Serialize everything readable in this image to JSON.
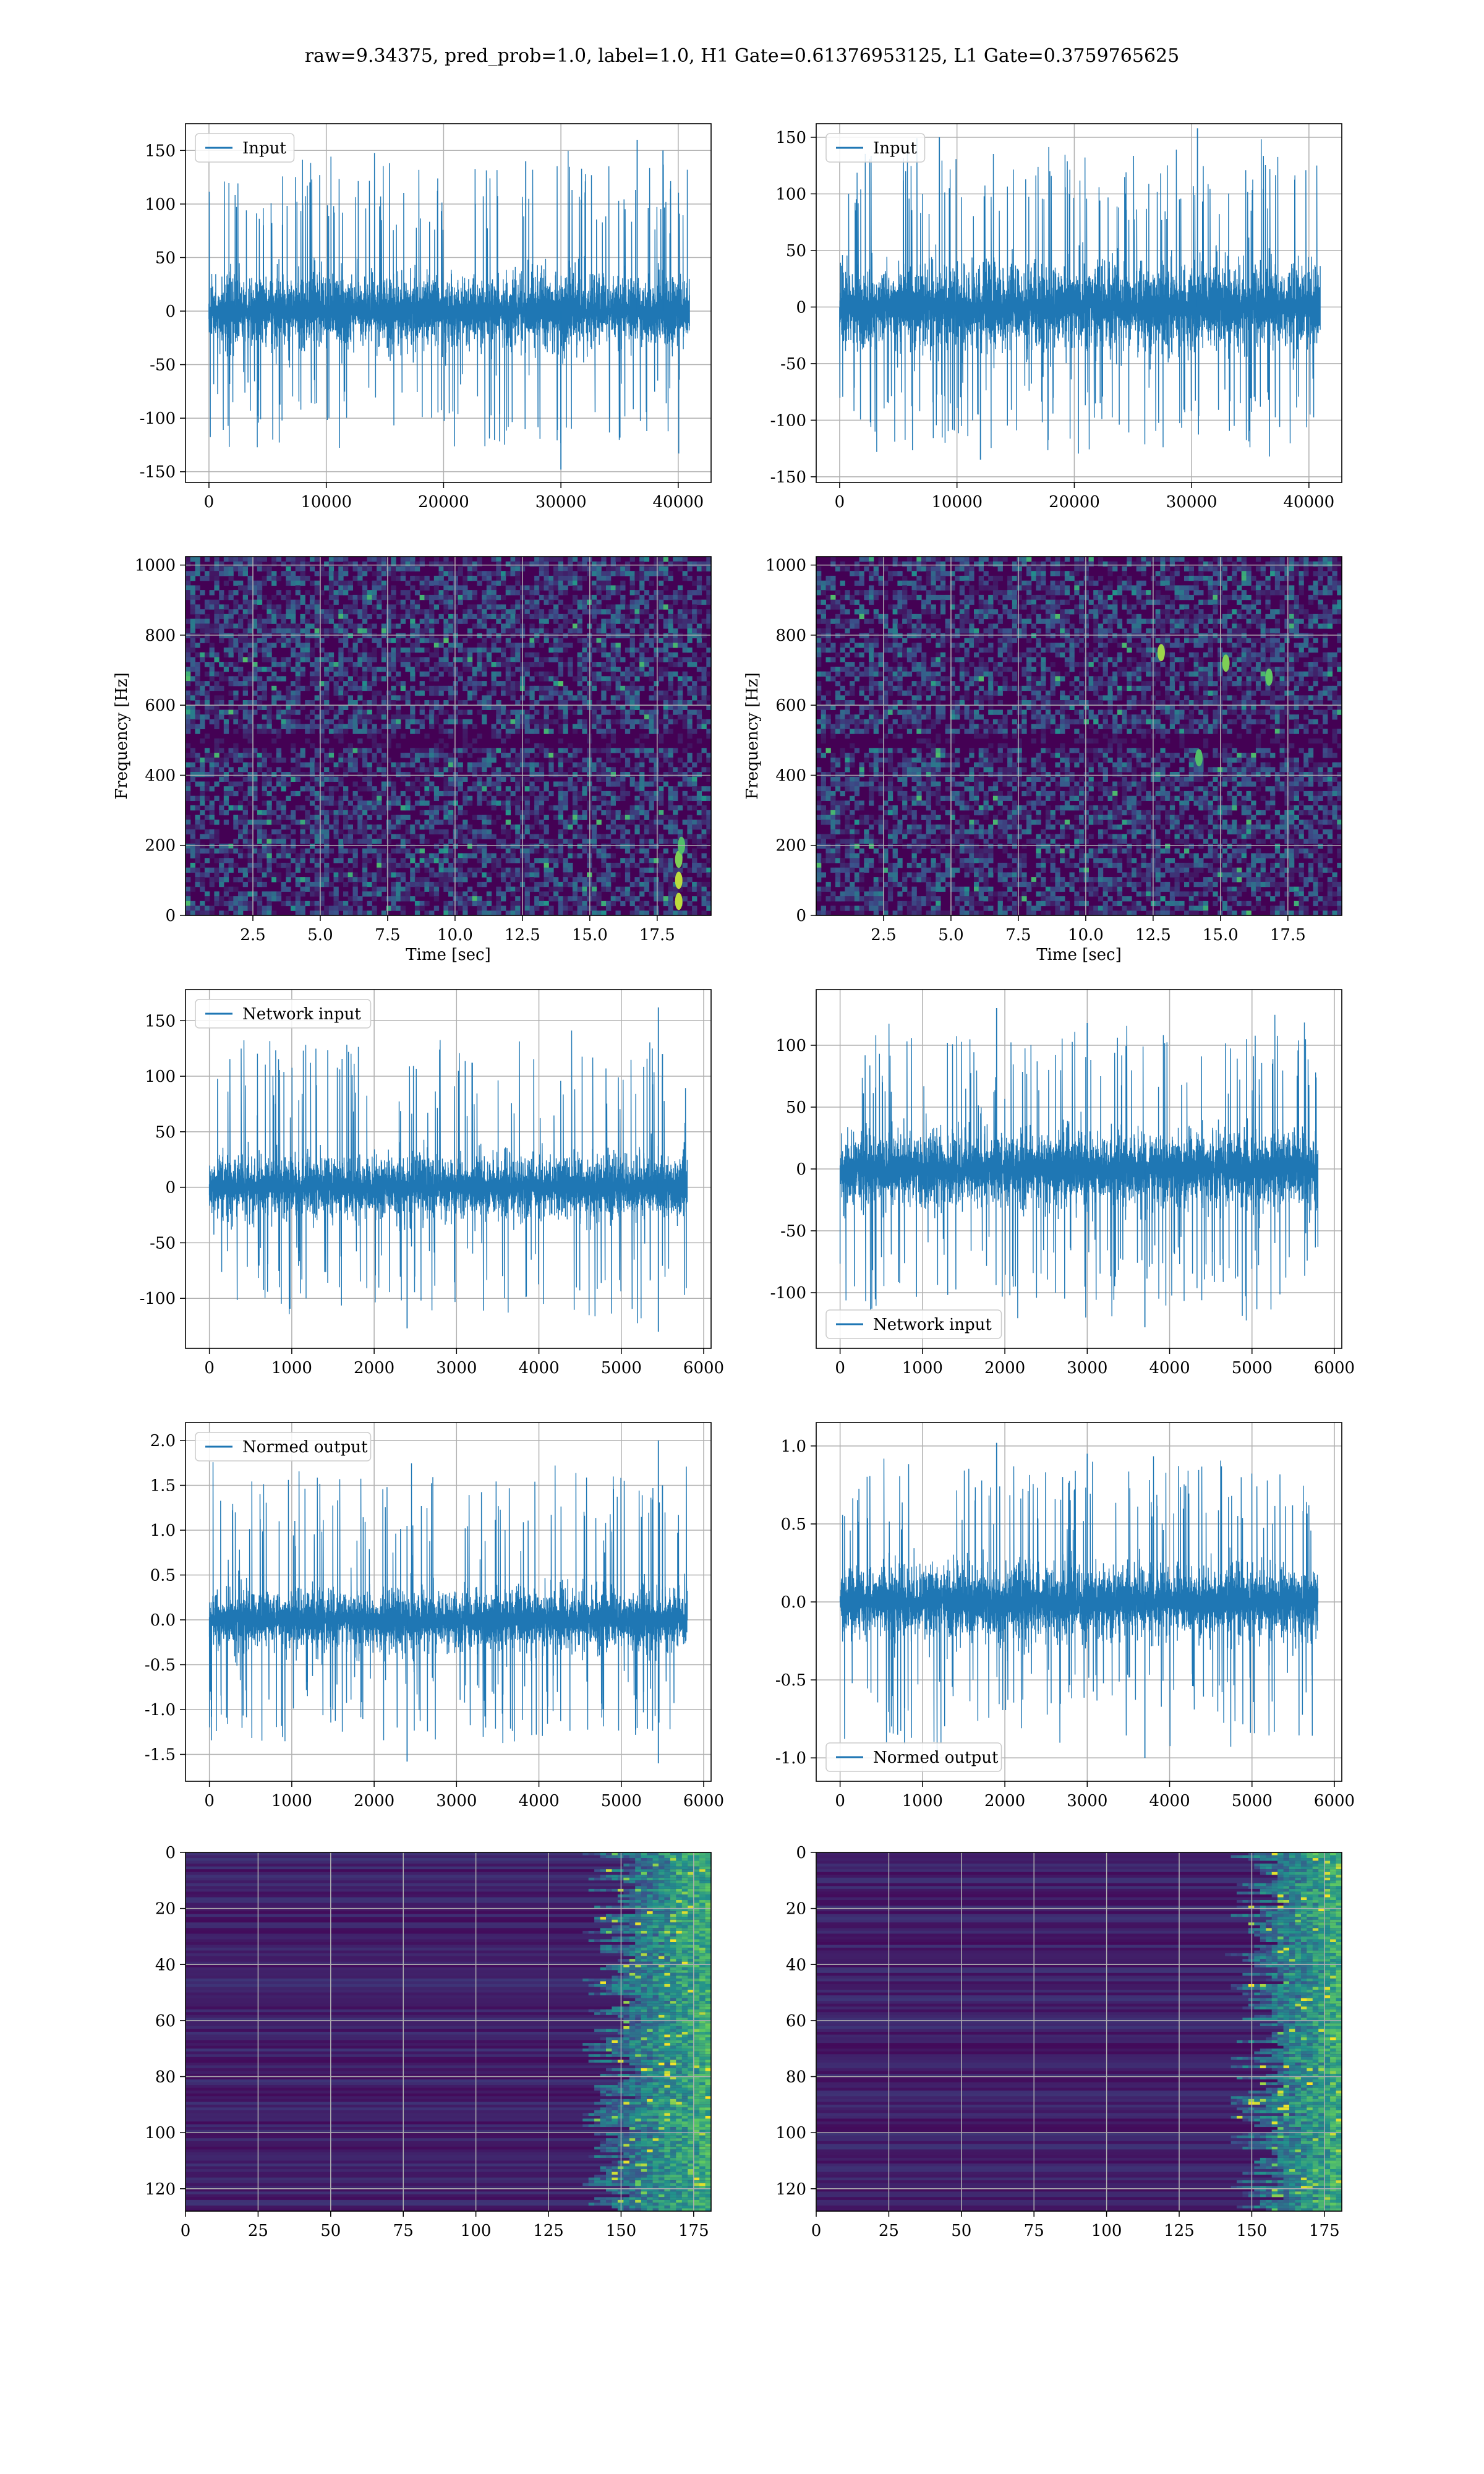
{
  "figure": {
    "suptitle": "raw=9.34375, pred_prob=1.0, label=1.0, H1 Gate=0.61376953125, L1 Gate=0.3759765625"
  },
  "colors": {
    "line": "#1f77b4",
    "grid": "#b0b0b0",
    "viridis_low": "#440154",
    "viridis_mid": "#21918c",
    "viridis_high": "#fde725"
  },
  "chart_data": [
    {
      "type": "line",
      "id": "input-h1",
      "title": "",
      "legend": "Input",
      "legend_loc": "upper-left",
      "xlim": [
        -2000,
        42800
      ],
      "ylim": [
        -160,
        175
      ],
      "xticks": [
        0,
        10000,
        20000,
        30000,
        40000
      ],
      "yticks": [
        -150,
        -100,
        -50,
        0,
        50,
        100,
        150
      ],
      "x_range": [
        0,
        40960
      ],
      "envelope_typical": [
        -55,
        65
      ],
      "envelope_max": [
        -150,
        160
      ],
      "spikes": [
        [
          36500,
          160
        ],
        [
          38700,
          150
        ],
        [
          30000,
          -148
        ],
        [
          27000,
          140
        ]
      ],
      "xlabel": "",
      "ylabel": ""
    },
    {
      "type": "line",
      "id": "input-l1",
      "title": "",
      "legend": "Input",
      "legend_loc": "upper-left",
      "xlim": [
        -2000,
        42800
      ],
      "ylim": [
        -155,
        162
      ],
      "xticks": [
        0,
        10000,
        20000,
        30000,
        40000
      ],
      "yticks": [
        -150,
        -100,
        -50,
        0,
        50,
        100,
        150
      ],
      "x_range": [
        0,
        40960
      ],
      "envelope_typical": [
        -60,
        70
      ],
      "envelope_max": [
        -140,
        158
      ],
      "spikes": [
        [
          30500,
          158
        ],
        [
          8500,
          150
        ],
        [
          12000,
          -135
        ]
      ],
      "xlabel": "",
      "ylabel": ""
    },
    {
      "type": "heatmap",
      "id": "spectrogram-h1",
      "title": "",
      "xlim": [
        0,
        19.5
      ],
      "ylim": [
        0,
        1024
      ],
      "xticks": [
        2.5,
        5.0,
        7.5,
        10.0,
        12.5,
        15.0,
        17.5
      ],
      "yticks": [
        0,
        200,
        400,
        600,
        800,
        1000
      ],
      "xlabel": "Time [sec]",
      "ylabel": "Frequency [Hz]",
      "colormap": "viridis",
      "dark_band_hz": 500,
      "bright_features": [
        [
          18.3,
          40,
          0.9
        ],
        [
          18.3,
          100,
          0.9
        ],
        [
          18.3,
          160,
          0.8
        ],
        [
          18.4,
          200,
          0.7
        ]
      ]
    },
    {
      "type": "heatmap",
      "id": "spectrogram-l1",
      "title": "",
      "xlim": [
        0,
        19.5
      ],
      "ylim": [
        0,
        1024
      ],
      "xticks": [
        2.5,
        5.0,
        7.5,
        10.0,
        12.5,
        15.0,
        17.5
      ],
      "yticks": [
        0,
        200,
        400,
        600,
        800,
        1000
      ],
      "xlabel": "Time [sec]",
      "ylabel": "Frequency [Hz]",
      "colormap": "viridis",
      "dark_band_hz": 500,
      "bright_features": [
        [
          12.8,
          750,
          0.85
        ],
        [
          15.2,
          720,
          0.8
        ],
        [
          16.8,
          680,
          0.75
        ],
        [
          14.2,
          450,
          0.7
        ]
      ]
    },
    {
      "type": "line",
      "id": "network-input-h1",
      "title": "",
      "legend": "Network input",
      "legend_loc": "upper-left",
      "xlim": [
        -290,
        6090
      ],
      "ylim": [
        -145,
        178
      ],
      "xticks": [
        0,
        1000,
        2000,
        3000,
        4000,
        5000,
        6000
      ],
      "yticks": [
        -100,
        -50,
        0,
        50,
        100,
        150
      ],
      "x_range": [
        0,
        5800
      ],
      "envelope_typical": [
        -45,
        55
      ],
      "envelope_max": [
        -130,
        162
      ],
      "spikes": [
        [
          5450,
          162
        ],
        [
          5450,
          -130
        ],
        [
          2400,
          -127
        ],
        [
          5500,
          120
        ]
      ],
      "xlabel": "",
      "ylabel": ""
    },
    {
      "type": "line",
      "id": "network-input-l1",
      "title": "",
      "legend": "Network input",
      "legend_loc": "lower-left",
      "xlim": [
        -290,
        6090
      ],
      "ylim": [
        -145,
        145
      ],
      "xticks": [
        0,
        1000,
        2000,
        3000,
        4000,
        5000,
        6000
      ],
      "yticks": [
        -100,
        -50,
        0,
        50,
        100
      ],
      "x_range": [
        0,
        5800
      ],
      "envelope_typical": [
        -50,
        55
      ],
      "envelope_max": [
        -128,
        130
      ],
      "spikes": [
        [
          1900,
          130
        ],
        [
          3700,
          -128
        ],
        [
          3000,
          118
        ]
      ],
      "xlabel": "",
      "ylabel": ""
    },
    {
      "type": "line",
      "id": "normed-output-h1",
      "title": "",
      "legend": "Normed output",
      "legend_loc": "upper-left",
      "xlim": [
        -290,
        6090
      ],
      "ylim": [
        -1.8,
        2.2
      ],
      "xticks": [
        0,
        1000,
        2000,
        3000,
        4000,
        5000,
        6000
      ],
      "yticks": [
        -1.5,
        -1.0,
        -0.5,
        0.0,
        0.5,
        1.0,
        1.5,
        2.0
      ],
      "x_range": [
        0,
        5800
      ],
      "envelope_typical": [
        -0.55,
        0.65
      ],
      "envelope_max": [
        -1.6,
        2.0
      ],
      "spikes": [
        [
          5450,
          2.0
        ],
        [
          5450,
          -1.6
        ],
        [
          2400,
          -1.58
        ],
        [
          5500,
          1.5
        ]
      ],
      "xlabel": "",
      "ylabel": ""
    },
    {
      "type": "line",
      "id": "normed-output-l1",
      "title": "",
      "legend": "Normed output",
      "legend_loc": "lower-left",
      "xlim": [
        -290,
        6090
      ],
      "ylim": [
        -1.15,
        1.15
      ],
      "xticks": [
        0,
        1000,
        2000,
        3000,
        4000,
        5000,
        6000
      ],
      "yticks": [
        -1.0,
        -0.5,
        0.0,
        0.5,
        1.0
      ],
      "x_range": [
        0,
        5800
      ],
      "envelope_typical": [
        -0.4,
        0.42
      ],
      "envelope_max": [
        -1.0,
        1.02
      ],
      "spikes": [
        [
          1900,
          1.02
        ],
        [
          3700,
          -1.0
        ],
        [
          3000,
          0.95
        ]
      ],
      "xlabel": "",
      "ylabel": ""
    },
    {
      "type": "heatmap",
      "id": "feature-map-h1",
      "title": "",
      "xlim": [
        0,
        181
      ],
      "ylim": [
        128,
        0
      ],
      "xticks": [
        0,
        25,
        50,
        75,
        100,
        125,
        150,
        175
      ],
      "yticks": [
        0,
        20,
        40,
        60,
        80,
        100,
        120
      ],
      "xlabel": "",
      "ylabel": "",
      "colormap": "viridis",
      "active_from_col": 145
    },
    {
      "type": "heatmap",
      "id": "feature-map-l1",
      "title": "",
      "xlim": [
        0,
        181
      ],
      "ylim": [
        128,
        0
      ],
      "xticks": [
        0,
        25,
        50,
        75,
        100,
        125,
        150,
        175
      ],
      "yticks": [
        0,
        20,
        40,
        60,
        80,
        100,
        120
      ],
      "xlabel": "",
      "ylabel": "",
      "colormap": "viridis",
      "active_from_col": 150
    }
  ]
}
